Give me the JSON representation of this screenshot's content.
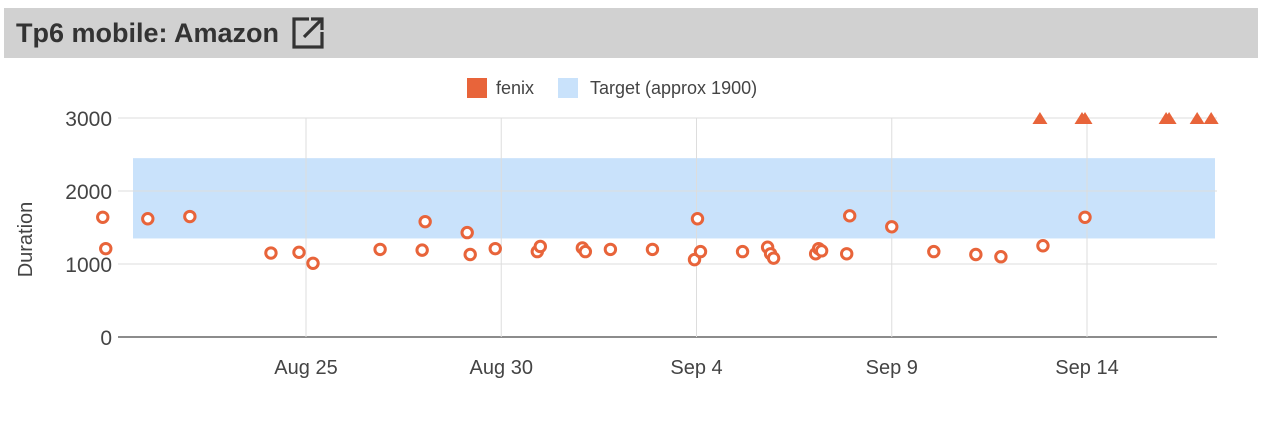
{
  "header": {
    "title": "Tp6 mobile: Amazon",
    "link_icon": "external-link-icon"
  },
  "colors": {
    "series": "#e8643a",
    "target_band": "#c9e2fb",
    "title_bar": "#d1d1d1",
    "grid": "#dddddd"
  },
  "chart_data": {
    "type": "scatter",
    "title": "",
    "xlabel": "",
    "ylabel": "Duration",
    "ylim": [
      0,
      3000
    ],
    "xlim": [
      "2025-08-21",
      "2025-09-17"
    ],
    "y_ticks": [
      "0",
      "1000",
      "2000",
      "3000"
    ],
    "x_ticks": [
      {
        "date": "2025-08-25",
        "label": "Aug 25"
      },
      {
        "date": "2025-08-30",
        "label": "Aug 30"
      },
      {
        "date": "2025-09-04",
        "label": "Sep 4"
      },
      {
        "date": "2025-09-09",
        "label": "Sep 9"
      },
      {
        "date": "2025-09-14",
        "label": "Sep 14"
      }
    ],
    "legend": {
      "placement": "top-center",
      "entries": [
        "fenix",
        "Target (approx 1900)"
      ]
    },
    "target_band": {
      "name": "Target (approx 1900)",
      "low": 1350,
      "high": 2450
    },
    "series": [
      {
        "name": "fenix",
        "points": [
          {
            "x": "2025-08-20",
            "y": 1640
          },
          {
            "x": "2025-08-20",
            "y": 1210
          },
          {
            "x": "2025-08-21",
            "y": 1620
          },
          {
            "x": "2025-08-22",
            "y": 1650
          },
          {
            "x": "2025-08-24",
            "y": 1150
          },
          {
            "x": "2025-08-25",
            "y": 1010
          },
          {
            "x": "2025-08-25",
            "y": 1160
          },
          {
            "x": "2025-08-27",
            "y": 1200
          },
          {
            "x": "2025-08-28",
            "y": 1190
          },
          {
            "x": "2025-08-28",
            "y": 1580
          },
          {
            "x": "2025-08-29",
            "y": 1430
          },
          {
            "x": "2025-08-29",
            "y": 1130
          },
          {
            "x": "2025-08-30",
            "y": 1210
          },
          {
            "x": "2025-08-31",
            "y": 1170
          },
          {
            "x": "2025-08-31",
            "y": 1240
          },
          {
            "x": "2025-09-01",
            "y": 1220
          },
          {
            "x": "2025-09-01",
            "y": 1170
          },
          {
            "x": "2025-09-02",
            "y": 1200
          },
          {
            "x": "2025-09-03",
            "y": 1200
          },
          {
            "x": "2025-09-04",
            "y": 1060
          },
          {
            "x": "2025-09-04",
            "y": 1620
          },
          {
            "x": "2025-09-04",
            "y": 1170
          },
          {
            "x": "2025-09-05",
            "y": 1170
          },
          {
            "x": "2025-09-06",
            "y": 1230
          },
          {
            "x": "2025-09-06",
            "y": 1140
          },
          {
            "x": "2025-09-06",
            "y": 1080
          },
          {
            "x": "2025-09-07",
            "y": 1140
          },
          {
            "x": "2025-09-07",
            "y": 1210
          },
          {
            "x": "2025-09-07",
            "y": 1180
          },
          {
            "x": "2025-09-08",
            "y": 1140
          },
          {
            "x": "2025-09-08",
            "y": 1660
          },
          {
            "x": "2025-09-09",
            "y": 1510
          },
          {
            "x": "2025-09-10",
            "y": 1170
          },
          {
            "x": "2025-09-11",
            "y": 1130
          },
          {
            "x": "2025-09-12",
            "y": 1100
          },
          {
            "x": "2025-09-13",
            "y": 1250
          },
          {
            "x": "2025-09-14",
            "y": 1640
          }
        ]
      },
      {
        "name": "fenix",
        "marker": "triangle",
        "note": "values off chart (clipped at top)",
        "points": [
          {
            "x": "2025-09-13",
            "y": 3000
          },
          {
            "x": "2025-09-14",
            "y": 3000
          },
          {
            "x": "2025-09-14",
            "y": 3000
          },
          {
            "x": "2025-09-16",
            "y": 3000
          },
          {
            "x": "2025-09-16",
            "y": 3000
          },
          {
            "x": "2025-09-17",
            "y": 3000
          },
          {
            "x": "2025-09-17",
            "y": 3000
          }
        ]
      }
    ]
  }
}
